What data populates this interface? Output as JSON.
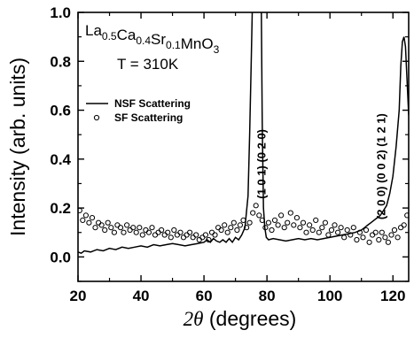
{
  "chart_data": {
    "type": "line",
    "title": "",
    "xlabel_symbol": "2θ",
    "xlabel_unit": "(degrees)",
    "ylabel": "Intensity (arb. units)",
    "xlim": [
      20,
      125
    ],
    "ylim": [
      -0.1,
      1.0
    ],
    "xticks": [
      20,
      40,
      60,
      80,
      100,
      120
    ],
    "yticks": [
      0.0,
      0.2,
      0.4,
      0.6,
      0.8,
      1.0
    ],
    "ytick_labels": [
      "0.0",
      "0.2",
      "0.4",
      "0.6",
      "0.8",
      "1.0"
    ],
    "compound": {
      "parts": [
        {
          "text": "La",
          "sub": "0.5"
        },
        {
          "text": "Ca",
          "sub": "0.4"
        },
        {
          "text": "Sr",
          "sub": "0.1"
        },
        {
          "text": "MnO",
          "sub": "3"
        }
      ]
    },
    "temperature_label": "T = 310K",
    "legend": {
      "position": "upper-left",
      "entries": [
        {
          "name": "NSF Scattering",
          "marker": "line"
        },
        {
          "name": "SF Scattering",
          "marker": "open-circle"
        }
      ]
    },
    "peak_labels": [
      {
        "text": "(1 0 1) (0 2 0)",
        "x": 79.5,
        "y": 0.38
      },
      {
        "text": "(2 0 0) (0 0 2) (1 2 1)",
        "x": 117.5,
        "y": 0.37
      }
    ],
    "series": [
      {
        "name": "NSF Scattering",
        "style": "line",
        "color": "#000000",
        "x": [
          20,
          21,
          22,
          24,
          26,
          28,
          30,
          32,
          34,
          36,
          38,
          40,
          42,
          44,
          46,
          48,
          50,
          52,
          54,
          56,
          58,
          60,
          61,
          62,
          63,
          64,
          65,
          66,
          67,
          68,
          69,
          70,
          71,
          72,
          73,
          74,
          74.5,
          75,
          75.4,
          75.8,
          76.1,
          76.4,
          76.7,
          77.0,
          77.3,
          77.6,
          77.9,
          78.2,
          78.5,
          78.9,
          79.3,
          79.8,
          80.5,
          82,
          84,
          86,
          88,
          90,
          92,
          94,
          96,
          98,
          100,
          102,
          104,
          106,
          108,
          110,
          111,
          112,
          113,
          114,
          115,
          116,
          117,
          118,
          119,
          120,
          121,
          122,
          122.5,
          123,
          123.5,
          124,
          124.5,
          125
        ],
        "y": [
          0.02,
          0.015,
          0.025,
          0.02,
          0.03,
          0.025,
          0.035,
          0.03,
          0.04,
          0.035,
          0.04,
          0.045,
          0.04,
          0.05,
          0.045,
          0.05,
          0.055,
          0.05,
          0.045,
          0.05,
          0.055,
          0.06,
          0.07,
          0.06,
          0.075,
          0.065,
          0.06,
          0.07,
          0.06,
          0.075,
          0.06,
          0.08,
          0.07,
          0.09,
          0.12,
          0.25,
          0.5,
          0.8,
          1.05,
          1.05,
          1.05,
          1.05,
          1.05,
          1.05,
          1.05,
          1.05,
          1.05,
          1.05,
          0.55,
          0.2,
          0.12,
          0.08,
          0.07,
          0.075,
          0.07,
          0.065,
          0.07,
          0.075,
          0.07,
          0.075,
          0.07,
          0.075,
          0.08,
          0.085,
          0.09,
          0.095,
          0.1,
          0.11,
          0.12,
          0.13,
          0.14,
          0.15,
          0.16,
          0.17,
          0.19,
          0.21,
          0.26,
          0.33,
          0.45,
          0.6,
          0.78,
          0.88,
          0.9,
          0.86,
          0.72,
          0.58
        ]
      },
      {
        "name": "SF Scattering",
        "style": "open-circle",
        "color": "#000000",
        "x": [
          20.5,
          21.5,
          22.5,
          23.5,
          24.5,
          25.5,
          26.5,
          27.5,
          28.5,
          29.5,
          30.5,
          31.5,
          32.5,
          33.5,
          34.5,
          35.5,
          36.5,
          37.5,
          38.5,
          39.5,
          40.5,
          41.5,
          42.5,
          43.5,
          44.5,
          45.5,
          46.5,
          47.5,
          48.5,
          49.5,
          50.5,
          51.5,
          52.5,
          53.5,
          54.5,
          55.5,
          56.5,
          57.5,
          58.5,
          59.5,
          60.5,
          61.5,
          62.5,
          63.5,
          64.5,
          65.5,
          66.5,
          67.5,
          68.5,
          69.5,
          70.5,
          71.5,
          72.5,
          73.5,
          74.5,
          75.5,
          76.5,
          77.5,
          78.5,
          79.5,
          80.5,
          81.5,
          82.5,
          83.5,
          84.5,
          85.5,
          86.5,
          87.5,
          88.5,
          89.5,
          90.5,
          91.5,
          92.5,
          93.5,
          94.5,
          95.5,
          96.5,
          97.5,
          98.5,
          99.5,
          100.5,
          101.5,
          102.5,
          103.5,
          104.5,
          105.5,
          106.5,
          107.5,
          108.5,
          109.5,
          110.5,
          111.5,
          112.5,
          113.5,
          114.5,
          115.5,
          116.5,
          117.5,
          118.5,
          119.5,
          120.5,
          121.5,
          122.5,
          123.5,
          124.5
        ],
        "y": [
          0.19,
          0.15,
          0.17,
          0.14,
          0.16,
          0.12,
          0.14,
          0.13,
          0.11,
          0.14,
          0.12,
          0.1,
          0.13,
          0.12,
          0.1,
          0.13,
          0.11,
          0.12,
          0.1,
          0.12,
          0.09,
          0.11,
          0.1,
          0.12,
          0.09,
          0.1,
          0.11,
          0.09,
          0.1,
          0.08,
          0.11,
          0.09,
          0.1,
          0.08,
          0.09,
          0.1,
          0.08,
          0.09,
          0.07,
          0.08,
          0.09,
          0.07,
          0.1,
          0.09,
          0.12,
          0.11,
          0.13,
          0.1,
          0.12,
          0.14,
          0.11,
          0.13,
          0.15,
          0.12,
          0.14,
          0.18,
          0.21,
          0.17,
          0.15,
          0.12,
          0.14,
          0.11,
          0.15,
          0.13,
          0.17,
          0.12,
          0.14,
          0.18,
          0.13,
          0.16,
          0.12,
          0.14,
          0.1,
          0.13,
          0.11,
          0.15,
          0.1,
          0.12,
          0.14,
          0.09,
          0.11,
          0.13,
          0.1,
          0.12,
          0.08,
          0.11,
          0.09,
          0.12,
          0.07,
          0.1,
          0.08,
          0.11,
          0.06,
          0.09,
          0.1,
          0.07,
          0.1,
          0.08,
          0.06,
          0.09,
          0.11,
          0.08,
          0.12,
          0.13,
          0.17
        ]
      }
    ]
  }
}
